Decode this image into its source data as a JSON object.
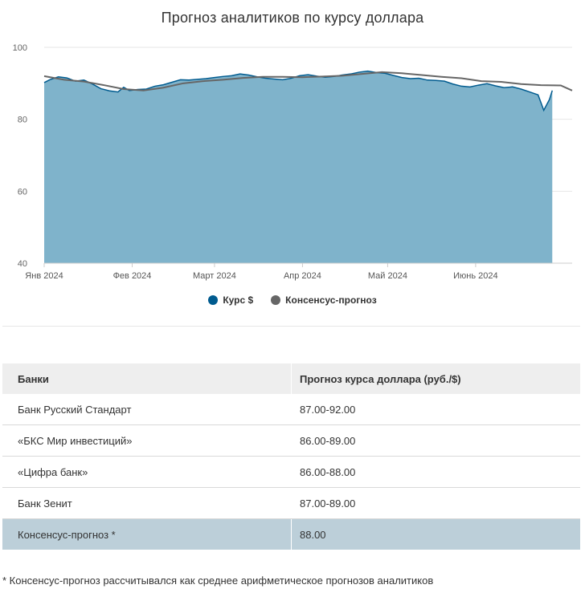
{
  "chart_data": {
    "type": "area",
    "title": "Прогноз аналитиков по курсу доллара",
    "ylim": [
      40,
      100
    ],
    "yticks": [
      40,
      60,
      80,
      100
    ],
    "xlim": [
      "2024-01-01",
      "2024-07-05"
    ],
    "xticks": [
      {
        "date": "2024-01-01",
        "label": "Янв 2024"
      },
      {
        "date": "2024-02-01",
        "label": "Фев 2024"
      },
      {
        "date": "2024-03-01",
        "label": "Март 2024"
      },
      {
        "date": "2024-04-01",
        "label": "Апр 2024"
      },
      {
        "date": "2024-05-01",
        "label": "Май 2024"
      },
      {
        "date": "2024-06-01",
        "label": "Июнь 2024"
      }
    ],
    "legend_position": "bottom-center",
    "series": [
      {
        "name": "Курс $",
        "type": "area",
        "color": "#005b8f",
        "fill": "#7fb3cb",
        "points": [
          [
            "2024-01-01",
            90.2
          ],
          [
            "2024-01-03",
            91.0
          ],
          [
            "2024-01-06",
            91.8
          ],
          [
            "2024-01-09",
            91.5
          ],
          [
            "2024-01-12",
            90.6
          ],
          [
            "2024-01-15",
            90.9
          ],
          [
            "2024-01-18",
            89.8
          ],
          [
            "2024-01-21",
            88.5
          ],
          [
            "2024-01-24",
            87.9
          ],
          [
            "2024-01-27",
            87.6
          ],
          [
            "2024-01-29",
            88.9
          ],
          [
            "2024-01-31",
            88.0
          ],
          [
            "2024-02-03",
            88.3
          ],
          [
            "2024-02-06",
            88.4
          ],
          [
            "2024-02-09",
            89.2
          ],
          [
            "2024-02-12",
            89.6
          ],
          [
            "2024-02-15",
            90.3
          ],
          [
            "2024-02-18",
            91.0
          ],
          [
            "2024-02-21",
            90.9
          ],
          [
            "2024-02-24",
            91.1
          ],
          [
            "2024-02-27",
            91.3
          ],
          [
            "2024-03-01",
            91.6
          ],
          [
            "2024-03-04",
            91.9
          ],
          [
            "2024-03-07",
            92.1
          ],
          [
            "2024-03-10",
            92.6
          ],
          [
            "2024-03-13",
            92.3
          ],
          [
            "2024-03-16",
            91.8
          ],
          [
            "2024-03-19",
            91.4
          ],
          [
            "2024-03-22",
            91.2
          ],
          [
            "2024-03-25",
            91.0
          ],
          [
            "2024-03-28",
            91.4
          ],
          [
            "2024-03-31",
            92.1
          ],
          [
            "2024-04-03",
            92.4
          ],
          [
            "2024-04-06",
            92.0
          ],
          [
            "2024-04-09",
            91.7
          ],
          [
            "2024-04-12",
            91.9
          ],
          [
            "2024-04-15",
            92.3
          ],
          [
            "2024-04-18",
            92.6
          ],
          [
            "2024-04-21",
            93.1
          ],
          [
            "2024-04-24",
            93.4
          ],
          [
            "2024-04-27",
            93.0
          ],
          [
            "2024-04-30",
            92.8
          ],
          [
            "2024-05-03",
            92.2
          ],
          [
            "2024-05-06",
            91.6
          ],
          [
            "2024-05-09",
            91.3
          ],
          [
            "2024-05-12",
            91.4
          ],
          [
            "2024-05-15",
            90.9
          ],
          [
            "2024-05-18",
            90.8
          ],
          [
            "2024-05-21",
            90.6
          ],
          [
            "2024-05-24",
            89.8
          ],
          [
            "2024-05-27",
            89.2
          ],
          [
            "2024-05-30",
            89.0
          ],
          [
            "2024-06-02",
            89.5
          ],
          [
            "2024-06-05",
            89.9
          ],
          [
            "2024-06-08",
            89.3
          ],
          [
            "2024-06-11",
            88.8
          ],
          [
            "2024-06-14",
            89.0
          ],
          [
            "2024-06-17",
            88.4
          ],
          [
            "2024-06-20",
            87.6
          ],
          [
            "2024-06-23",
            86.8
          ],
          [
            "2024-06-25",
            82.5
          ],
          [
            "2024-06-27",
            85.5
          ],
          [
            "2024-06-28",
            88.0
          ]
        ]
      },
      {
        "name": "Консенсус-прогноз",
        "type": "line",
        "color": "#666666",
        "points": [
          [
            "2024-01-01",
            92.0
          ],
          [
            "2024-01-08",
            91.0
          ],
          [
            "2024-01-15",
            90.5
          ],
          [
            "2024-01-22",
            89.5
          ],
          [
            "2024-01-29",
            88.4
          ],
          [
            "2024-02-05",
            88.0
          ],
          [
            "2024-02-12",
            88.8
          ],
          [
            "2024-02-19",
            90.0
          ],
          [
            "2024-02-26",
            90.6
          ],
          [
            "2024-03-04",
            91.0
          ],
          [
            "2024-03-11",
            91.5
          ],
          [
            "2024-03-18",
            91.8
          ],
          [
            "2024-03-25",
            91.8
          ],
          [
            "2024-04-01",
            91.7
          ],
          [
            "2024-04-08",
            91.9
          ],
          [
            "2024-04-15",
            92.1
          ],
          [
            "2024-04-22",
            92.6
          ],
          [
            "2024-04-29",
            93.1
          ],
          [
            "2024-05-06",
            92.8
          ],
          [
            "2024-05-13",
            92.3
          ],
          [
            "2024-05-20",
            91.8
          ],
          [
            "2024-05-27",
            91.4
          ],
          [
            "2024-06-03",
            90.6
          ],
          [
            "2024-06-10",
            90.4
          ],
          [
            "2024-06-17",
            89.8
          ],
          [
            "2024-06-24",
            89.5
          ],
          [
            "2024-07-01",
            89.4
          ],
          [
            "2024-07-05",
            88.0
          ]
        ]
      }
    ]
  },
  "table": {
    "headers": [
      "Банки",
      "Прогноз курса доллара (руб./$)"
    ],
    "rows": [
      [
        "Банк Русский Стандарт",
        "87.00-92.00"
      ],
      [
        "«БКС Мир инвестиций»",
        "86.00-89.00"
      ],
      [
        "«Цифра банк»",
        "86.00-88.00"
      ],
      [
        "Банк Зенит",
        "87.00-89.00"
      ],
      [
        "Консенсус-прогноз *",
        "88.00"
      ]
    ]
  },
  "footnote": "* Консенсус-прогноз рассчитывался как среднее арифметическое прогнозов аналитиков"
}
